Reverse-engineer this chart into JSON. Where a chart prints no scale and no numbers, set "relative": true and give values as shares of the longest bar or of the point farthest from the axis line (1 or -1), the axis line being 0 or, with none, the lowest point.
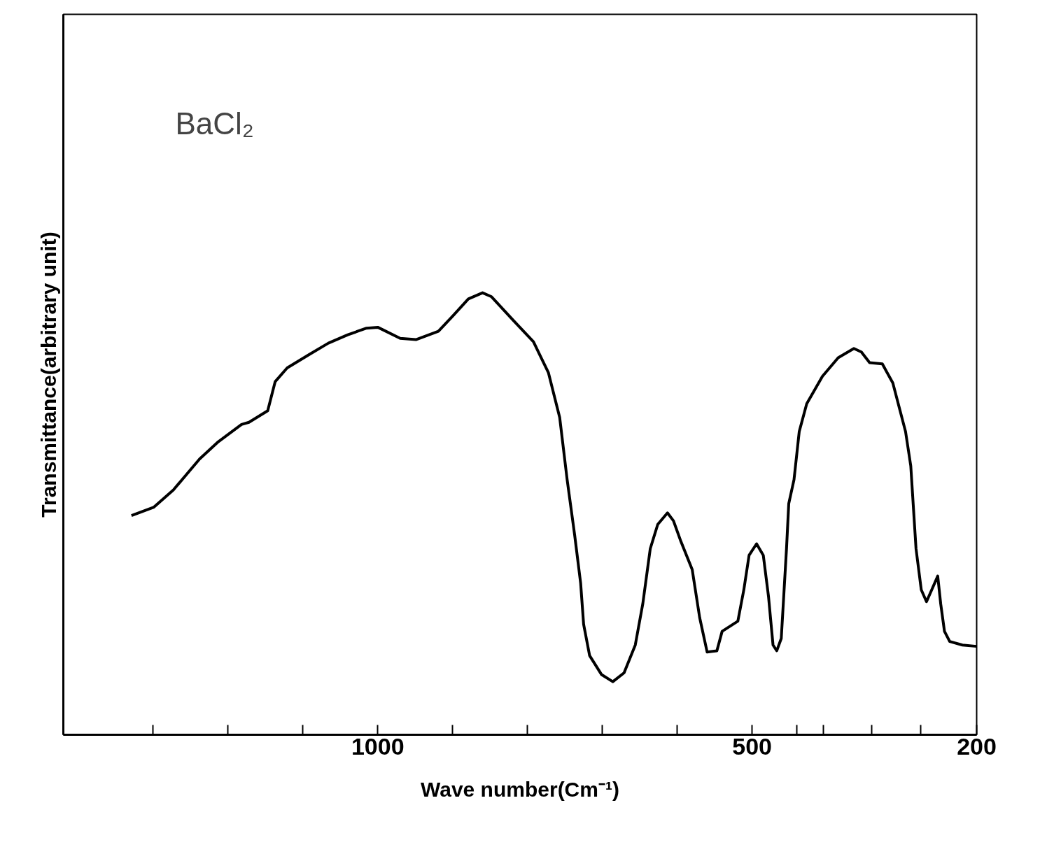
{
  "chart_data": {
    "type": "line",
    "relative": true,
    "xlabel": "Wave number(Cm⁻¹)",
    "ylabel": "Transmittance(arbitrary unit)",
    "annotations": [
      "BaCl₂"
    ],
    "xlim": [
      1420,
      200
    ],
    "xticks": [
      {
        "value": 1300,
        "label": null
      },
      {
        "value": 1200,
        "label": null
      },
      {
        "value": 1100,
        "label": null
      },
      1000,
      {
        "value": 900,
        "label": null
      },
      {
        "value": 800,
        "label": null
      },
      {
        "value": 700,
        "label": null
      },
      {
        "value": 600,
        "label": null
      },
      500,
      {
        "value": 440,
        "label": null
      },
      {
        "value": 405,
        "label": null
      },
      {
        "value": 340,
        "label": null
      },
      {
        "value": 275,
        "label": null
      },
      200
    ],
    "grid": false,
    "marker": "none",
    "line_style": "solid",
    "series": [
      {
        "color": "#000000",
        "x": [
          1329,
          1299,
          1273,
          1238,
          1213,
          1182,
          1172,
          1147,
          1137,
          1121,
          1091,
          1066,
          1040,
          1015,
          1000,
          970,
          949,
          919,
          899,
          879,
          860,
          848,
          818,
          792,
          772,
          757,
          747,
          737,
          729,
          725,
          717,
          701,
          686,
          671,
          656,
          646,
          636,
          626,
          613,
          605,
          595,
          580,
          570,
          560,
          547,
          540,
          519,
          511,
          504,
          494,
          485,
          478,
          472,
          467,
          461,
          454,
          451,
          444,
          437,
          427,
          406,
          385,
          364,
          354,
          343,
          326,
          312,
          295,
          288,
          281,
          274,
          267,
          260,
          252,
          248,
          243,
          236,
          219,
          200
        ],
        "values": [
          0.496,
          0.515,
          0.554,
          0.624,
          0.663,
          0.702,
          0.707,
          0.733,
          0.799,
          0.83,
          0.861,
          0.886,
          0.905,
          0.92,
          0.922,
          0.897,
          0.894,
          0.913,
          0.949,
          0.986,
          1,
          0.991,
          0.936,
          0.889,
          0.819,
          0.718,
          0.577,
          0.452,
          0.343,
          0.25,
          0.179,
          0.136,
          0.12,
          0.14,
          0.203,
          0.296,
          0.421,
          0.476,
          0.502,
          0.484,
          0.437,
          0.374,
          0.265,
          0.187,
          0.19,
          0.234,
          0.257,
          0.328,
          0.406,
          0.432,
          0.406,
          0.312,
          0.203,
          0.19,
          0.218,
          0.421,
          0.523,
          0.577,
          0.686,
          0.749,
          0.811,
          0.853,
          0.874,
          0.866,
          0.842,
          0.839,
          0.796,
          0.686,
          0.608,
          0.421,
          0.328,
          0.301,
          0.328,
          0.359,
          0.296,
          0.234,
          0.211,
          0.203,
          0.2
        ]
      }
    ]
  }
}
